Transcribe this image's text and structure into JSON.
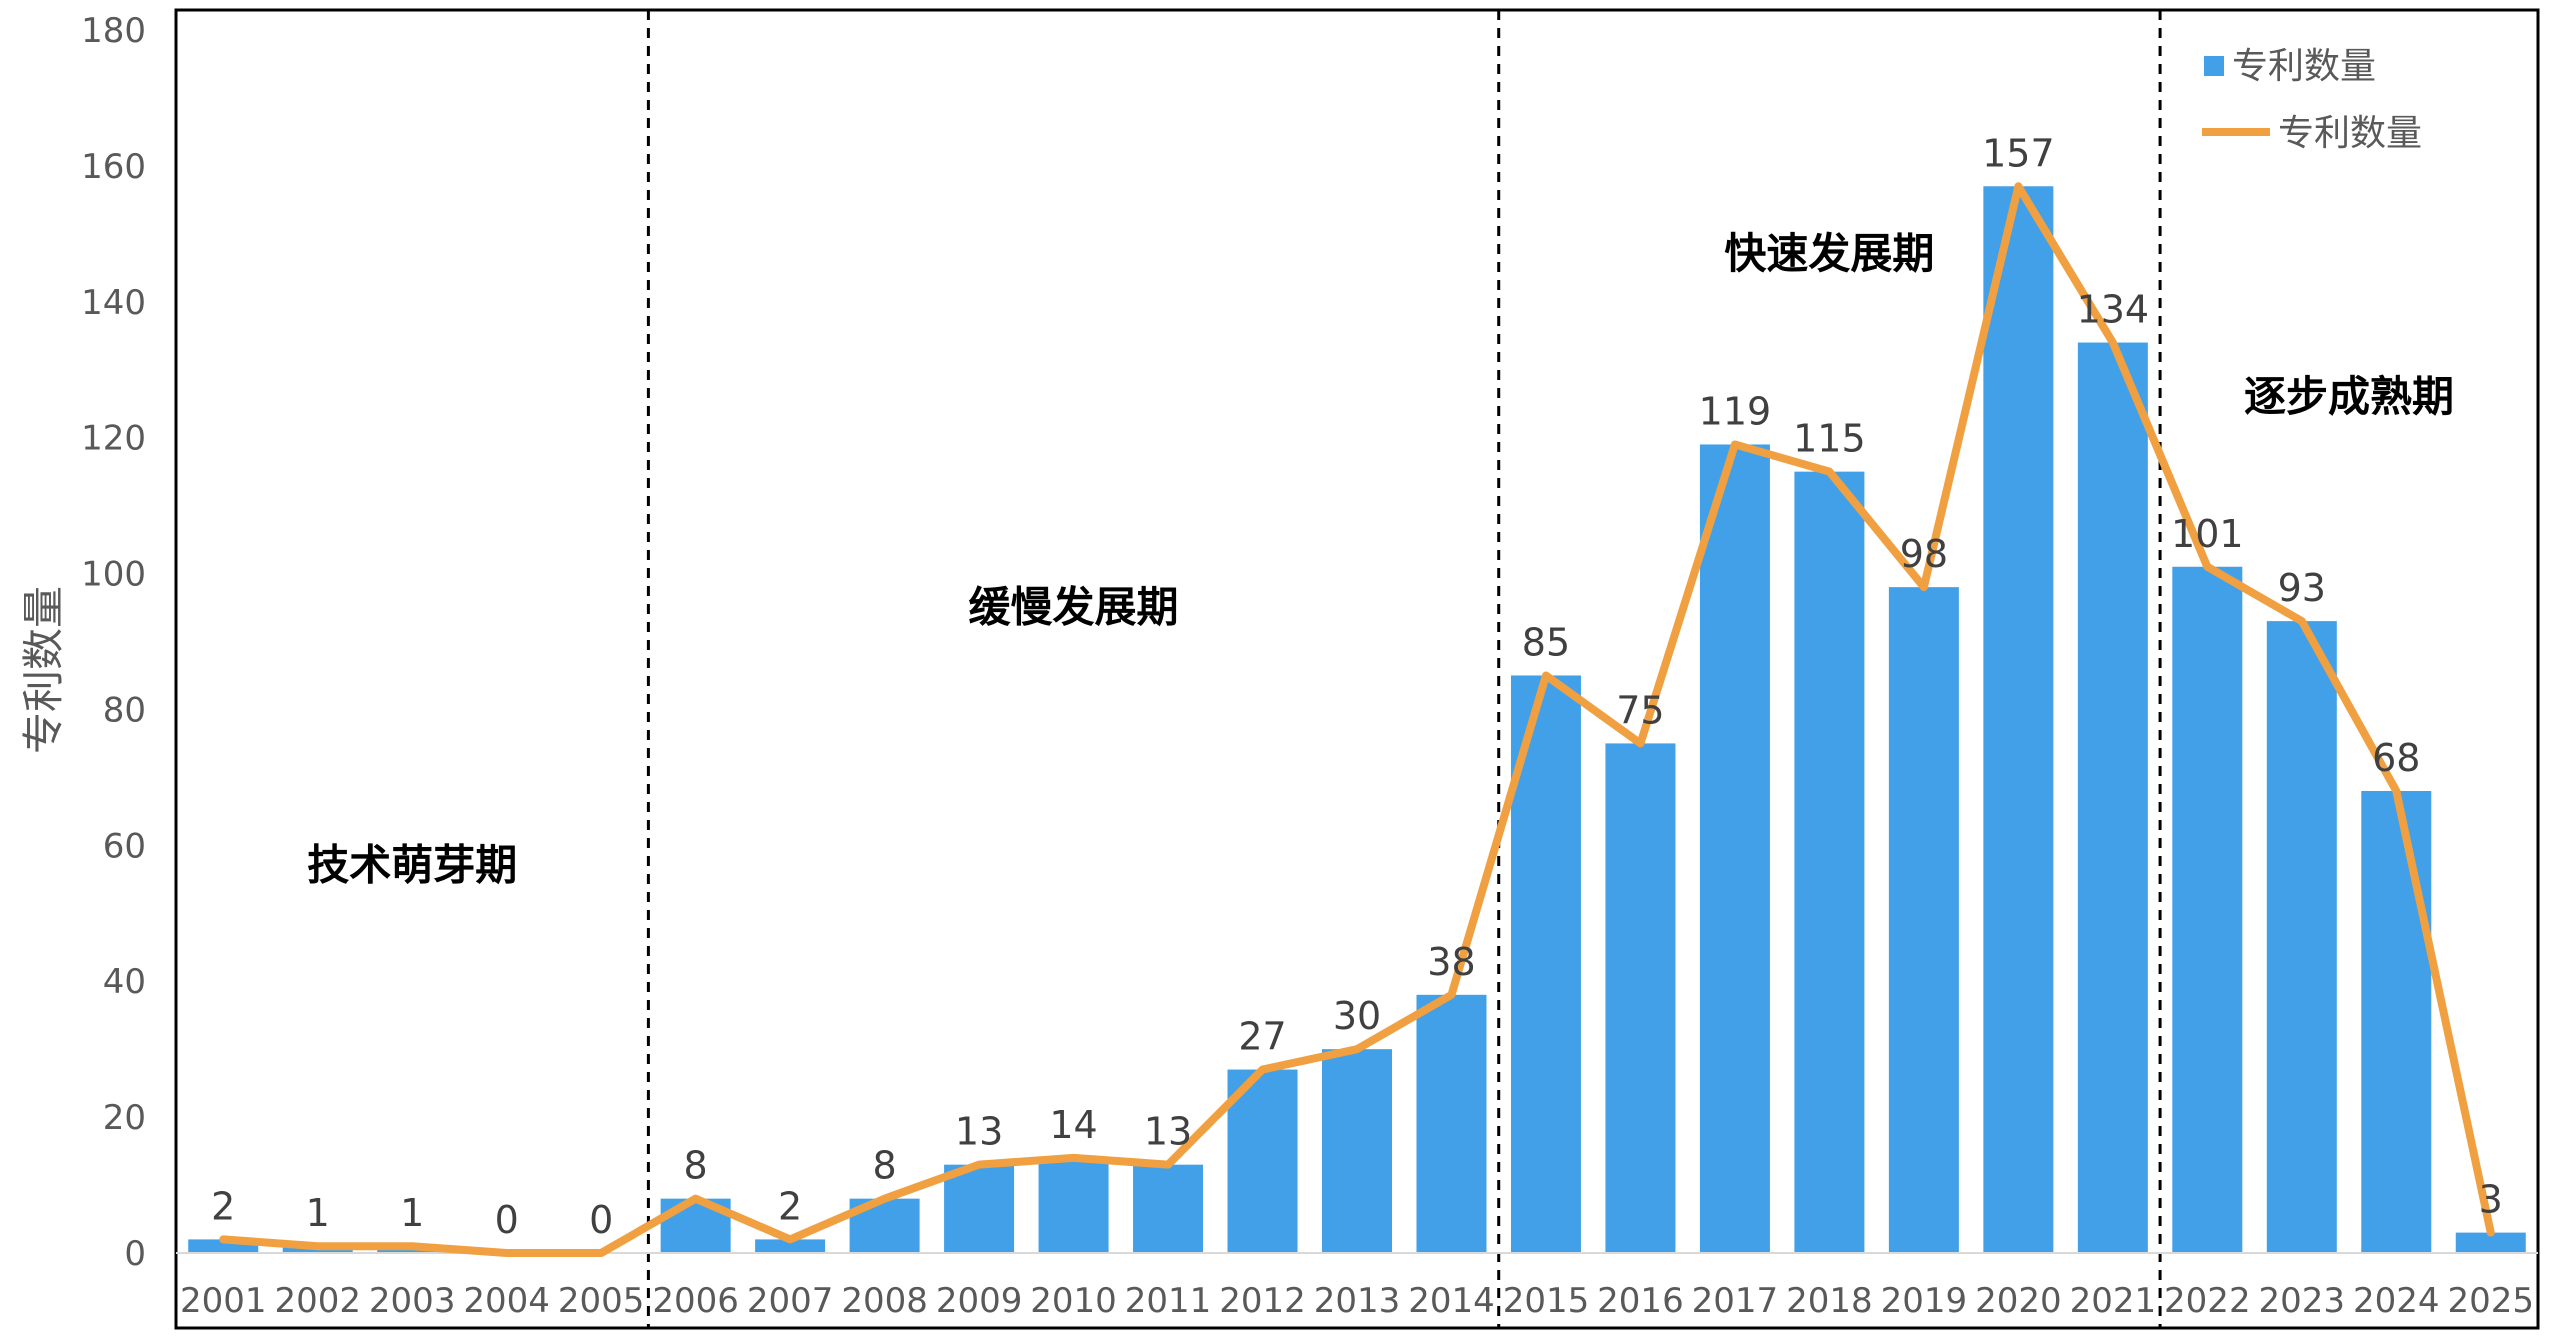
{
  "chart_data": {
    "type": "bar",
    "title": "",
    "xlabel": "",
    "ylabel": "专利数量",
    "ylim": [
      0,
      180
    ],
    "yticks": [
      0,
      20,
      40,
      60,
      80,
      100,
      120,
      140,
      160,
      180
    ],
    "categories": [
      "2001",
      "2002",
      "2003",
      "2004",
      "2005",
      "2006",
      "2007",
      "2008",
      "2009",
      "2010",
      "2011",
      "2012",
      "2013",
      "2014",
      "2015",
      "2016",
      "2017",
      "2018",
      "2019",
      "2020",
      "2021",
      "2022",
      "2023",
      "2024",
      "2025"
    ],
    "series": [
      {
        "name": "专利数量",
        "kind": "bar",
        "color": "#41a0e8",
        "values": [
          2,
          1,
          1,
          0,
          0,
          8,
          2,
          8,
          13,
          14,
          13,
          27,
          30,
          38,
          85,
          75,
          119,
          115,
          98,
          157,
          134,
          101,
          93,
          68,
          3
        ]
      },
      {
        "name": "专利数量",
        "kind": "line",
        "color": "#f0a040",
        "values": [
          2,
          1,
          1,
          0,
          0,
          8,
          2,
          8,
          13,
          14,
          13,
          27,
          30,
          38,
          85,
          75,
          119,
          115,
          98,
          157,
          134,
          101,
          93,
          68,
          3
        ]
      }
    ],
    "data_labels": [
      "2",
      "1",
      "1",
      "0",
      "0",
      "8",
      "2",
      "8",
      "13",
      "14",
      "13",
      "27",
      "30",
      "38",
      "85",
      "75",
      "119",
      "115",
      "98",
      "157",
      "134",
      "101",
      "93",
      "68",
      "3"
    ],
    "phases": [
      {
        "label": "技术萌芽期",
        "start": 0,
        "end": 4
      },
      {
        "label": "缓慢发展期",
        "start": 5,
        "end": 13
      },
      {
        "label": "快速发展期",
        "start": 14,
        "end": 20
      },
      {
        "label": "逐步成熟期",
        "start": 21,
        "end": 24
      }
    ],
    "grid": false,
    "legend_position": "top-right"
  }
}
